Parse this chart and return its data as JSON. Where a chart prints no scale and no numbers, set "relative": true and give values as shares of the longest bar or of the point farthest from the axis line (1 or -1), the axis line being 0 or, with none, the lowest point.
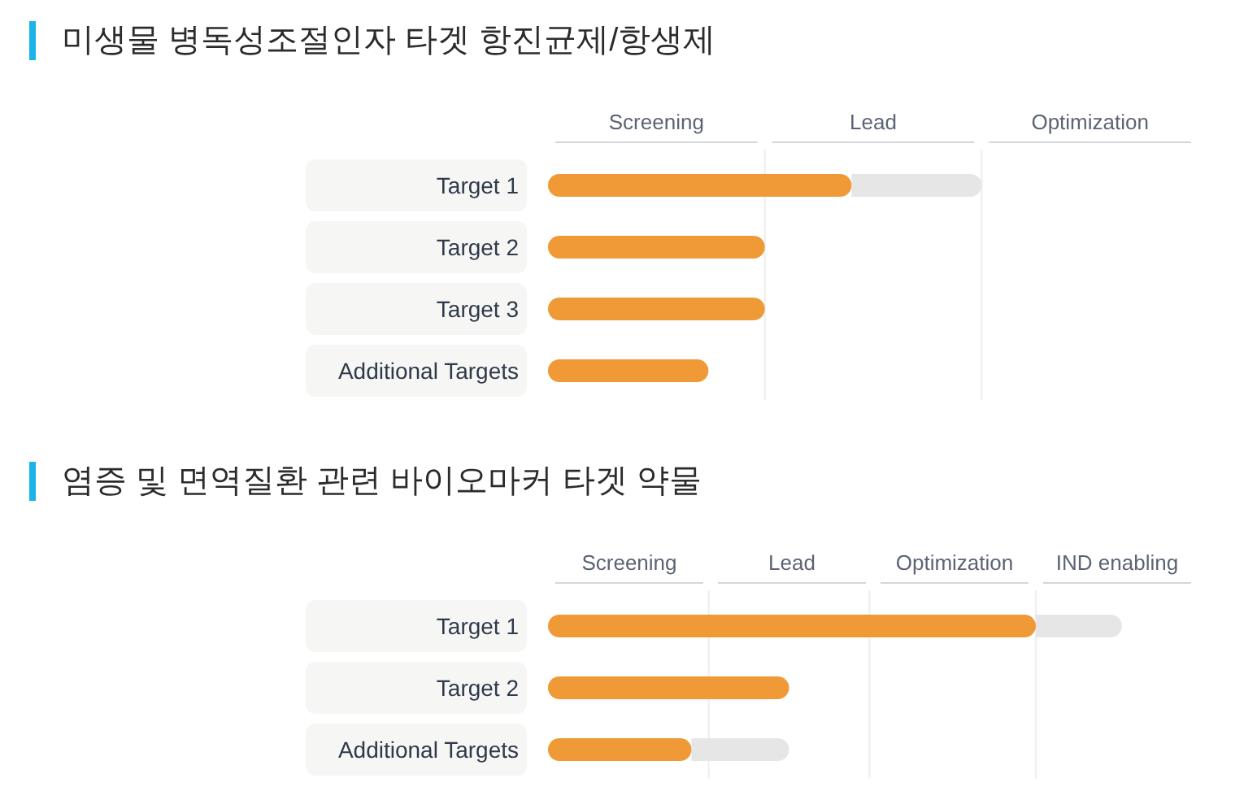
{
  "chart_data": [
    {
      "type": "bar",
      "orientation": "horizontal",
      "stacked": true,
      "relative": true,
      "title": "미생물 병독성조절인자 타겟 항진균제/항생제",
      "categories": [
        "Target 1",
        "Target 2",
        "Target 3",
        "Additional Targets"
      ],
      "series": [
        {
          "color": "#ef9a37",
          "values": [
            0.7,
            0.5,
            0.5,
            0.37
          ]
        },
        {
          "color": "#e6e6e6",
          "values": [
            0.3,
            null,
            null,
            null
          ]
        }
      ],
      "annotations": [
        "Screening",
        "Lead",
        "Optimization"
      ],
      "ref_lines": [
        {
          "axis": "x",
          "value": 0.5,
          "color": "#f0f0f0"
        },
        {
          "axis": "x",
          "value": 1,
          "color": "#f0f0f0"
        }
      ]
    },
    {
      "type": "bar",
      "orientation": "horizontal",
      "stacked": true,
      "relative": true,
      "title": "염증 및 면역질환 관련 바이오마커 타겟 약물",
      "categories": [
        "Target 1",
        "Target 2",
        "Additional Targets"
      ],
      "series": [
        {
          "color": "#ef9a37",
          "values": [
            0.85,
            0.42,
            0.25
          ]
        },
        {
          "color": "#e6e6e6",
          "values": [
            0.15,
            null,
            0.17
          ]
        }
      ],
      "annotations": [
        "Screening",
        "Lead",
        "Optimization",
        "IND enabling"
      ],
      "ref_lines": [
        {
          "axis": "x",
          "value": 0.28,
          "color": "#f0f0f0"
        },
        {
          "axis": "x",
          "value": 0.56,
          "color": "#f0f0f0"
        },
        {
          "axis": "x",
          "value": 0.85,
          "color": "#f0f0f0"
        }
      ]
    }
  ]
}
